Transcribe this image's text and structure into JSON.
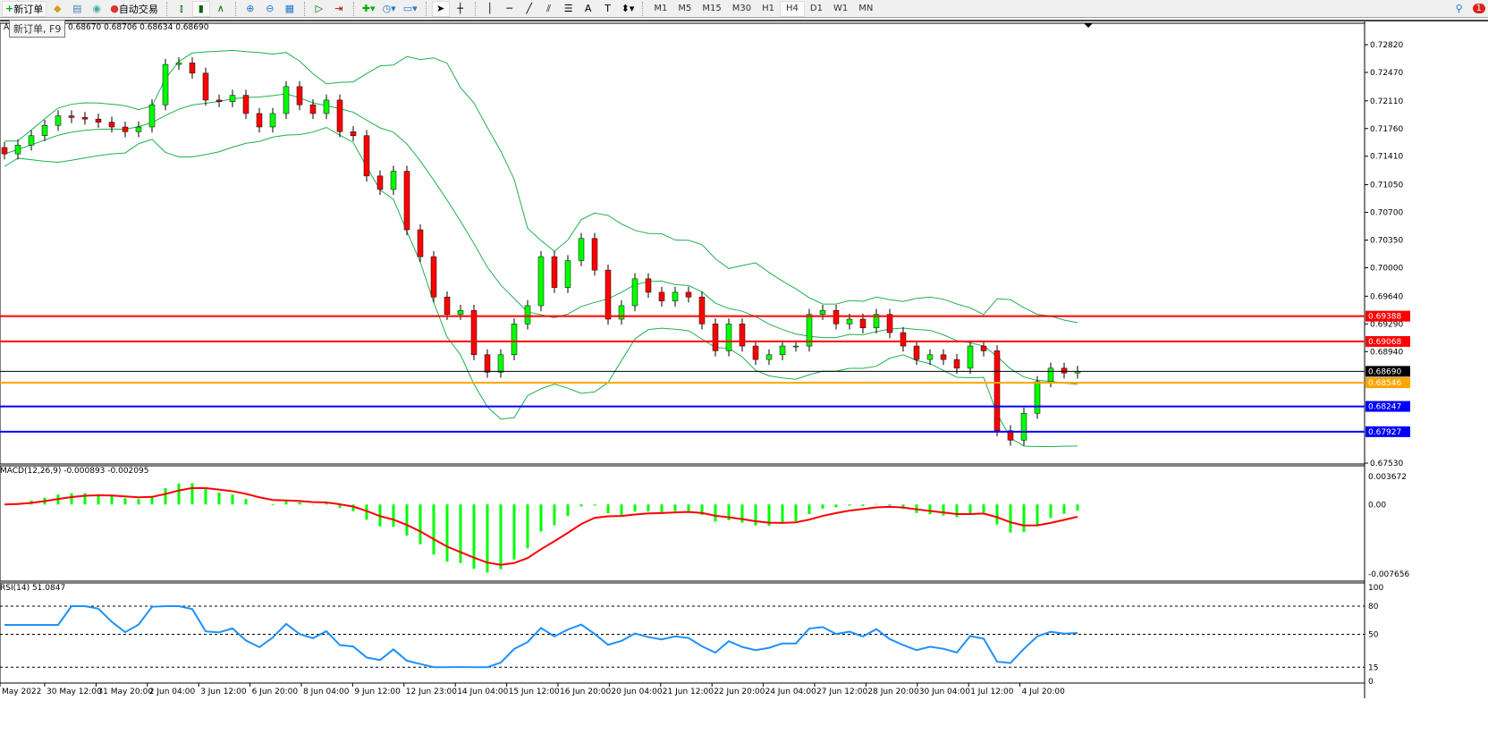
{
  "toolbar": {
    "new_order": "新订单",
    "auto_trading": "自动交易",
    "timeframes": [
      "M1",
      "M5",
      "M15",
      "M30",
      "H1",
      "H4",
      "D1",
      "W1",
      "MN"
    ],
    "active_timeframe": "H4",
    "notification_count": "1",
    "icons": [
      "new-order-icon",
      "market-watch-icon",
      "data-window-icon",
      "signals-icon",
      "auto-trading-icon",
      "bar-chart-icon",
      "candle-chart-icon",
      "line-chart-icon",
      "zoom-in-icon",
      "zoom-out-icon",
      "tile-windows-icon",
      "auto-scroll-icon",
      "chart-shift-icon",
      "indicators-icon",
      "periods-icon",
      "templates-icon",
      "cursor-icon",
      "crosshair-icon",
      "vertical-line-icon",
      "horizontal-line-icon",
      "trendline-icon",
      "equidistant-channel-icon",
      "fibonacci-icon",
      "text-icon",
      "text-label-icon",
      "arrows-icon"
    ]
  },
  "tooltip": "新订单, F9",
  "chart": {
    "symbol_prefix": "A",
    "ohlc": "0.68670 0.68706 0.68634 0.68690",
    "price_ticks": [
      "0.72820",
      "0.72470",
      "0.72110",
      "0.71760",
      "0.71410",
      "0.71050",
      "0.70700",
      "0.70350",
      "0.70000",
      "0.69640",
      "0.69290",
      "0.68940",
      "0.67530"
    ],
    "price_range": [
      0.6753,
      0.7282
    ],
    "levels": [
      {
        "price": "0.69388",
        "color": "#ff0000"
      },
      {
        "price": "0.69068",
        "color": "#ff0000"
      },
      {
        "price": "0.68690",
        "color": "#000000"
      },
      {
        "price": "0.68546",
        "color": "#ffa500"
      },
      {
        "price": "0.68247",
        "color": "#0000ff"
      },
      {
        "price": "0.67927",
        "color": "#0000ff"
      }
    ],
    "closes": [
      0.7144,
      0.7155,
      0.7167,
      0.718,
      0.7192,
      0.719,
      0.7188,
      0.7184,
      0.7178,
      0.7172,
      0.7178,
      0.7206,
      0.7257,
      0.7259,
      0.7246,
      0.7212,
      0.721,
      0.7218,
      0.7195,
      0.7178,
      0.7195,
      0.7229,
      0.7206,
      0.7195,
      0.7212,
      0.7172,
      0.7167,
      0.7116,
      0.7099,
      0.7122,
      0.7048,
      0.7014,
      0.6963,
      0.6941,
      0.6946,
      0.689,
      0.6868,
      0.689,
      0.6929,
      0.6952,
      0.7014,
      0.6975,
      0.7009,
      0.7037,
      0.6997,
      0.6935,
      0.6952,
      0.6986,
      0.6969,
      0.6958,
      0.6969,
      0.6963,
      0.6929,
      0.6895,
      0.6929,
      0.6901,
      0.6884,
      0.689,
      0.6901,
      0.6901,
      0.6941,
      0.6946,
      0.6929,
      0.6935,
      0.6924,
      0.6941,
      0.6918,
      0.6901,
      0.6884,
      0.689,
      0.6884,
      0.6873,
      0.6901,
      0.6895,
      0.6794,
      0.6782,
      0.6816,
      0.6856,
      0.6873,
      0.6867,
      0.6869
    ],
    "bull_color": "#00ff00",
    "bear_color": "#ff0000",
    "band_color": "#20b050"
  },
  "macd": {
    "label": "MACD(12,26,9) -0.000893 -0.002095",
    "ticks": [
      "0.003672",
      "0.00",
      "-0.007656"
    ],
    "range": [
      -0.007656,
      0.003672
    ],
    "hist_color": "#00ff00",
    "signal_color": "#ff0000"
  },
  "rsi": {
    "label": "RSI(14) 51.0847",
    "ticks": [
      "100",
      "80",
      "50",
      "15",
      "0"
    ],
    "color": "#1e90ff"
  },
  "time_axis": [
    "May 2022",
    "30 May 12:00",
    "31 May 20:00",
    "2 Jun 04:00",
    "3 Jun 12:00",
    "6 Jun 20:00",
    "8 Jun 04:00",
    "9 Jun 12:00",
    "12 Jun 23:00",
    "14 Jun 04:00",
    "15 Jun 12:00",
    "16 Jun 20:00",
    "20 Jun 04:00",
    "21 Jun 12:00",
    "22 Jun 20:00",
    "24 Jun 04:00",
    "27 Jun 12:00",
    "28 Jun 20:00",
    "30 Jun 04:00",
    "1 Jul 12:00",
    "4 Jul 20:00"
  ]
}
